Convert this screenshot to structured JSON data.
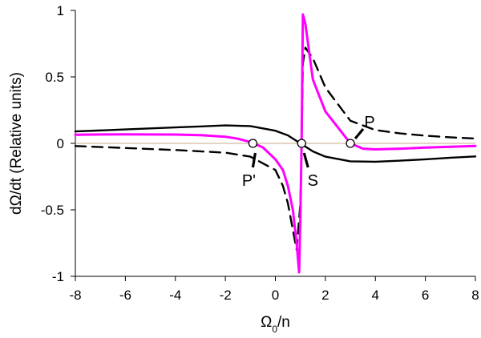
{
  "chart_data": {
    "type": "line",
    "ylabel": "dΩ/dt (Relative units)",
    "xlabel_base": "Ω",
    "xlabel_sub": "0",
    "xlabel_tail": "/n",
    "xlim": [
      -8,
      8
    ],
    "ylim": [
      -1,
      1
    ],
    "x_ticks": [
      -8,
      -6,
      -4,
      -2,
      0,
      2,
      4,
      6,
      8
    ],
    "x_tick_labels": [
      "-8",
      "-6",
      "-4",
      "-2",
      "0",
      "2",
      "4",
      "6",
      "8"
    ],
    "y_ticks": [
      1,
      0.5,
      0,
      -0.5,
      -1
    ],
    "y_tick_labels": [
      "1",
      "0.5",
      "0",
      "-0.5",
      "-1"
    ],
    "zero_line_color": "#c8a98a",
    "series": [
      {
        "style": "solid",
        "color": "#000000",
        "points": [
          [
            -8,
            0.09
          ],
          [
            -6,
            0.105
          ],
          [
            -4,
            0.12
          ],
          [
            -2,
            0.135
          ],
          [
            -1,
            0.13
          ],
          [
            0,
            0.095
          ],
          [
            0.5,
            0.06
          ],
          [
            1,
            0.0
          ],
          [
            1.5,
            -0.06
          ],
          [
            2,
            -0.1
          ],
          [
            3,
            -0.135
          ],
          [
            4,
            -0.138
          ],
          [
            5,
            -0.13
          ],
          [
            6,
            -0.12
          ],
          [
            7,
            -0.108
          ],
          [
            8,
            -0.098
          ]
        ]
      },
      {
        "style": "dashed",
        "color": "#000000",
        "points": [
          [
            -8,
            -0.02
          ],
          [
            -6,
            -0.035
          ],
          [
            -4,
            -0.05
          ],
          [
            -2,
            -0.07
          ],
          [
            -1,
            -0.1
          ],
          [
            -0.5,
            -0.15
          ],
          [
            0,
            -0.2
          ],
          [
            0.3,
            -0.32
          ],
          [
            0.5,
            -0.45
          ],
          [
            0.7,
            -0.65
          ],
          [
            0.85,
            -0.8
          ],
          [
            1.0,
            -0.45
          ],
          [
            1.05,
            0.0
          ],
          [
            1.1,
            0.6
          ],
          [
            1.2,
            0.72
          ],
          [
            1.5,
            0.64
          ],
          [
            2,
            0.42
          ],
          [
            3,
            0.17
          ],
          [
            4,
            0.1
          ],
          [
            5,
            0.075
          ],
          [
            6,
            0.058
          ],
          [
            7,
            0.046
          ],
          [
            8,
            0.036
          ]
        ]
      },
      {
        "style": "solid",
        "color": "#ff00ff",
        "points": [
          [
            -8,
            0.065
          ],
          [
            -6,
            0.068
          ],
          [
            -4,
            0.066
          ],
          [
            -3,
            0.062
          ],
          [
            -2,
            0.05
          ],
          [
            -1.5,
            0.035
          ],
          [
            -1,
            0.01
          ],
          [
            -0.5,
            -0.03
          ],
          [
            0,
            -0.12
          ],
          [
            0.3,
            -0.2
          ],
          [
            0.5,
            -0.32
          ],
          [
            0.7,
            -0.5
          ],
          [
            0.85,
            -0.75
          ],
          [
            0.95,
            -0.97
          ],
          [
            1.0,
            -0.55
          ],
          [
            1.05,
            0.0
          ],
          [
            1.1,
            0.97
          ],
          [
            1.2,
            0.9
          ],
          [
            1.5,
            0.48
          ],
          [
            2,
            0.24
          ],
          [
            2.5,
            0.12
          ],
          [
            3,
            0.0
          ],
          [
            3.5,
            -0.04
          ],
          [
            4,
            -0.045
          ],
          [
            5,
            -0.04
          ],
          [
            6,
            -0.032
          ],
          [
            7,
            -0.026
          ],
          [
            8,
            -0.02
          ]
        ]
      }
    ],
    "points_marked": [
      {
        "label": "P'",
        "x": -0.9,
        "y": 0.0
      },
      {
        "label": "S",
        "x": 1.05,
        "y": 0.0
      },
      {
        "label": "P",
        "x": 3.0,
        "y": 0.0
      }
    ]
  }
}
